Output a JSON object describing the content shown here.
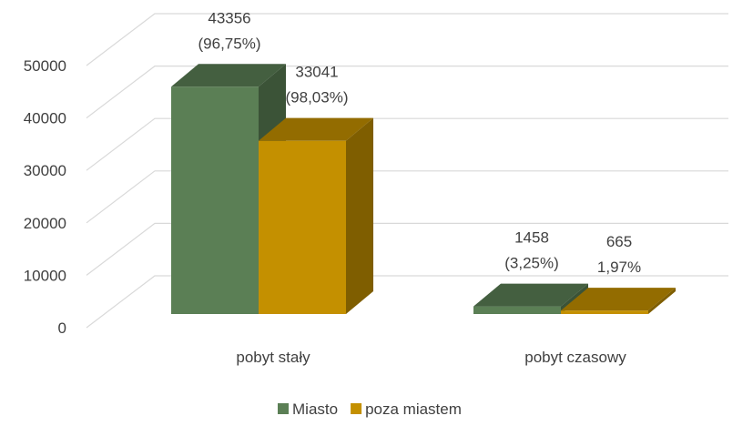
{
  "chart_data": {
    "type": "bar3d",
    "categories": [
      "pobyt stały",
      "pobyt czasowy"
    ],
    "series": [
      {
        "name": "Miasto",
        "color": "#5b7f55",
        "values": [
          43356,
          1458
        ],
        "value_labels": [
          "43356\n(96,75%)",
          "1458\n(3,25%)"
        ]
      },
      {
        "name": "poza miastem",
        "color": "#c49000",
        "values": [
          33041,
          665
        ],
        "value_labels": [
          "33041\n(98,03%)",
          "665\n1,97%"
        ]
      }
    ],
    "ylim": [
      0,
      50000
    ],
    "yticks": [
      0,
      10000,
      20000,
      30000,
      40000,
      50000
    ],
    "grid": true,
    "legend": "bottom"
  }
}
